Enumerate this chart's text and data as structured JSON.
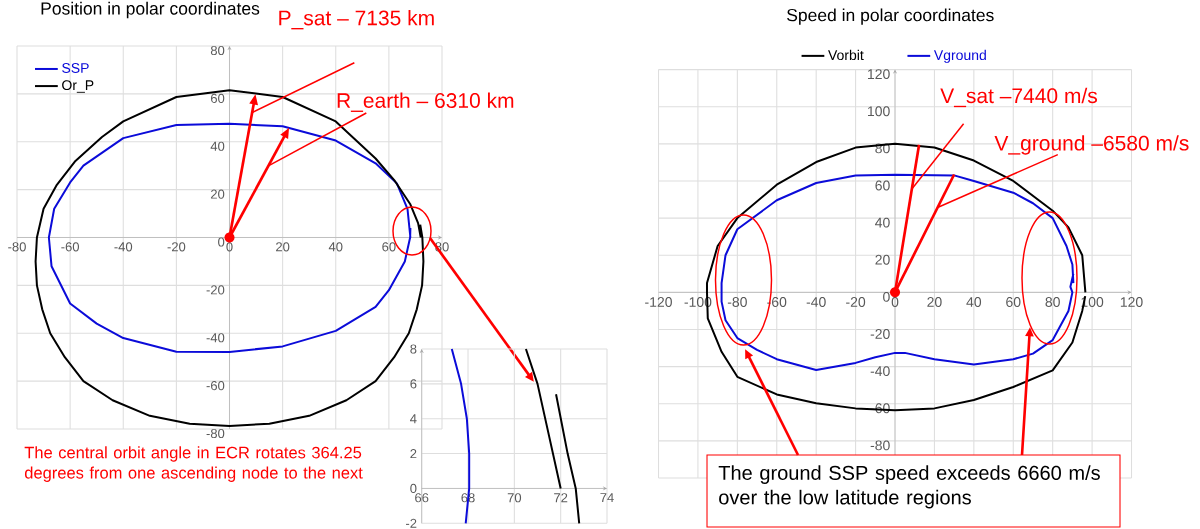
{
  "chart_data": [
    {
      "type": "line",
      "title": "Position in polar coordinates",
      "xlim": [
        -80,
        80
      ],
      "ylim": [
        -80,
        80
      ],
      "xticks": [
        -80,
        -60,
        -40,
        -20,
        0,
        20,
        40,
        60,
        80
      ],
      "yticks": [
        -80,
        -60,
        -40,
        -20,
        0,
        20,
        40,
        60,
        80
      ],
      "grid": true,
      "legend": "top left",
      "series": [
        {
          "name": "SSP",
          "color": "#0b0bd9",
          "x": [
            68.1,
            67,
            63,
            55,
            40,
            20,
            0,
            -20,
            -40,
            -55,
            -60,
            -66,
            -68,
            -67,
            -60,
            -50,
            -40,
            -20,
            0,
            20,
            40,
            55,
            60,
            66,
            68,
            68.1
          ],
          "values": [
            0,
            12,
            22.6,
            31,
            40.5,
            46.5,
            47.5,
            47,
            41.5,
            30,
            23,
            12,
            0,
            -12,
            -27.6,
            -36,
            -42,
            -47.7,
            -47.8,
            -45.5,
            -39,
            -29,
            -22,
            -10,
            0,
            4
          ]
        },
        {
          "name": "Or_P",
          "color": "#000000",
          "x": [
            72,
            71,
            68,
            62,
            55,
            40,
            20,
            0,
            -20,
            -40,
            -48,
            -58,
            -65,
            -70,
            -72.5,
            -73,
            -72.5,
            -70.5,
            -67.5,
            -62,
            -55,
            -44,
            -30,
            -15,
            0,
            15,
            30,
            44,
            55,
            62,
            67.5,
            70.5,
            72.5,
            73,
            72.6,
            71.8
          ],
          "values": [
            0,
            6,
            14,
            24,
            33,
            48.5,
            58.7,
            61.5,
            58.7,
            48.5,
            42,
            32,
            22,
            12,
            0,
            -10,
            -20,
            -30,
            -40,
            -50,
            -60,
            -68,
            -74.5,
            -77.8,
            -78.7,
            -77.8,
            -74.5,
            -68,
            -60,
            -50,
            -40,
            -30,
            -20,
            -10,
            0,
            5.4
          ]
        }
      ],
      "annotations": [
        "P_sat – 7135 km",
        "R_earth – 6310 km",
        "The central orbit angle in ECR rotates 364.25 degrees from one ascending node to the next"
      ]
    },
    {
      "type": "line",
      "xlim": [
        66,
        74
      ],
      "ylim": [
        -2,
        8
      ],
      "xticks": [
        66,
        68,
        70,
        72,
        74
      ],
      "yticks": [
        -2,
        0,
        2,
        4,
        6,
        8
      ],
      "grid": true,
      "series": [
        {
          "color": "#0b0bd9",
          "x": [
            67.3,
            67.7,
            67.95,
            68.05,
            68.05,
            67.9
          ],
          "values": [
            8,
            6,
            4,
            2,
            0,
            -2
          ]
        },
        {
          "color": "#000000",
          "x": [
            70.5,
            71,
            71.5,
            72
          ],
          "values": [
            8,
            6,
            3,
            0
          ]
        },
        {
          "color": "#000000",
          "x": [
            71.8,
            72.3,
            72.65,
            72.8
          ],
          "values": [
            5.4,
            2,
            0,
            -2
          ]
        }
      ]
    },
    {
      "type": "line",
      "title": "Speed in polar coordinates",
      "xlim": [
        -120,
        120
      ],
      "ylim": [
        -100,
        120
      ],
      "xticks": [
        -120,
        -100,
        -80,
        -60,
        -40,
        -20,
        0,
        20,
        40,
        60,
        80,
        100,
        120
      ],
      "yticks": [
        {
          "value": -100,
          "label": null
        },
        -80,
        -60,
        -40,
        -20,
        0,
        20,
        40,
        60,
        80,
        100,
        120
      ],
      "grid": true,
      "legend": "top",
      "series": [
        {
          "name": "Vorbit",
          "color": "#000000",
          "x": [
            96.6,
            95,
            88,
            80,
            60,
            40,
            20,
            0,
            -20,
            -40,
            -60,
            -80,
            -90,
            -95.4,
            -95.4,
            -95,
            -88,
            -80,
            -60,
            -40,
            -20,
            0,
            20,
            40,
            60,
            80,
            90,
            95,
            96.5
          ],
          "values": [
            0,
            20,
            35,
            44,
            60,
            71,
            78,
            80,
            78,
            70.2,
            58,
            40,
            25,
            5,
            0,
            -14,
            -32,
            -45.5,
            -55,
            -59.7,
            -62.5,
            -63.5,
            -62.5,
            -58,
            -51,
            -42,
            -27,
            -10,
            -2
          ]
        },
        {
          "name": "Vground",
          "color": "#0b0bd9",
          "x": [
            90.5,
            90,
            87,
            80,
            70,
            60,
            40,
            30,
            0,
            -20,
            -40,
            -60,
            -80,
            -86,
            -88,
            -88,
            -86,
            -80,
            -70,
            -60,
            -40,
            -20,
            -10,
            0,
            5,
            20,
            40,
            60,
            70,
            80,
            88,
            90,
            89,
            90.5
          ],
          "values": [
            5,
            15,
            25,
            40,
            48,
            53.7,
            60,
            63,
            63.4,
            63,
            58.9,
            49.6,
            34,
            20,
            5,
            -5,
            -15,
            -24.6,
            -31,
            -36,
            -41.8,
            -38,
            -35,
            -32.6,
            -32.6,
            -36,
            -38.8,
            -36,
            -33,
            -25.7,
            -10,
            0,
            3,
            10
          ]
        }
      ],
      "annotations": [
        "V_sat –7440 m/s",
        "V_ground –6580 m/s",
        "The ground SSP speed exceeds 6660 m/s over the low latitude regions"
      ]
    }
  ]
}
